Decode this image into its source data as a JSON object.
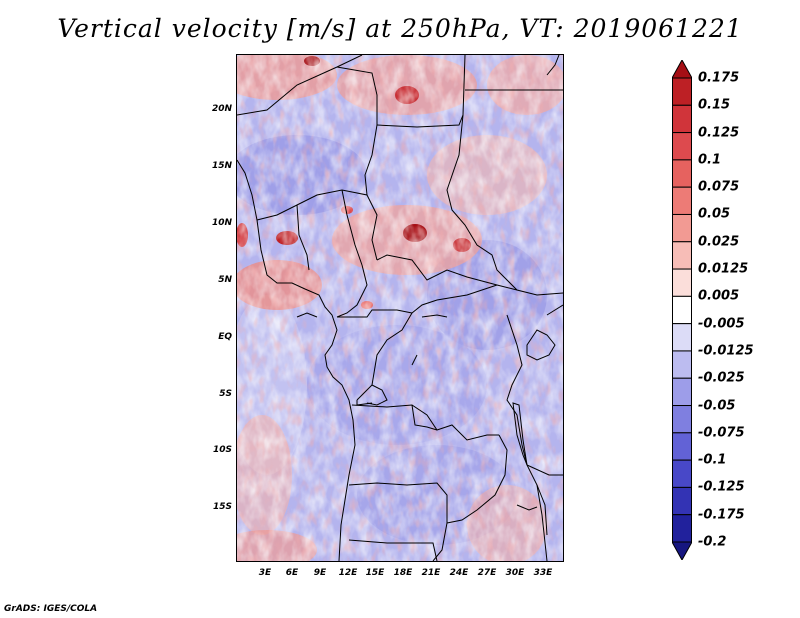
{
  "title": "Vertical velocity [m/s] at 250hPa, VT: 2019061221",
  "credit": "GrADS: IGES/COLA",
  "map": {
    "lon_range": [
      0,
      36
    ],
    "lat_range": [
      -20,
      25
    ],
    "lat_ticks": [
      {
        "value": 20,
        "label": "20N"
      },
      {
        "value": 15,
        "label": "15N"
      },
      {
        "value": 10,
        "label": "10N"
      },
      {
        "value": 5,
        "label": "5N"
      },
      {
        "value": 0,
        "label": "EQ"
      },
      {
        "value": -5,
        "label": "5S"
      },
      {
        "value": -10,
        "label": "10S"
      },
      {
        "value": -15,
        "label": "15S"
      }
    ],
    "lon_ticks": [
      {
        "value": 3,
        "label": "3E"
      },
      {
        "value": 6,
        "label": "6E"
      },
      {
        "value": 9,
        "label": "9E"
      },
      {
        "value": 12,
        "label": "12E"
      },
      {
        "value": 15,
        "label": "15E"
      },
      {
        "value": 18,
        "label": "18E"
      },
      {
        "value": 21,
        "label": "21E"
      },
      {
        "value": 24,
        "label": "24E"
      },
      {
        "value": 27,
        "label": "27E"
      },
      {
        "value": 30,
        "label": "30E"
      },
      {
        "value": 33,
        "label": "33E"
      }
    ]
  },
  "colorbar": {
    "labels": [
      "0.175",
      "0.15",
      "0.125",
      "0.1",
      "0.075",
      "0.05",
      "0.025",
      "0.0125",
      "0.005",
      "-0.005",
      "-0.0125",
      "-0.025",
      "-0.05",
      "-0.075",
      "-0.1",
      "-0.125",
      "-0.175",
      "-0.2"
    ],
    "colors": [
      "#a50f15",
      "#bd2025",
      "#d0343a",
      "#dd4a4e",
      "#e6625f",
      "#ed7b76",
      "#f29a93",
      "#f7bdb7",
      "#fbdeda",
      "#ffffff",
      "#dcdcf7",
      "#bcbcf0",
      "#9d9de9",
      "#7f7fe0",
      "#6262d6",
      "#4848c8",
      "#3333b4",
      "#21219c",
      "#161680"
    ]
  }
}
